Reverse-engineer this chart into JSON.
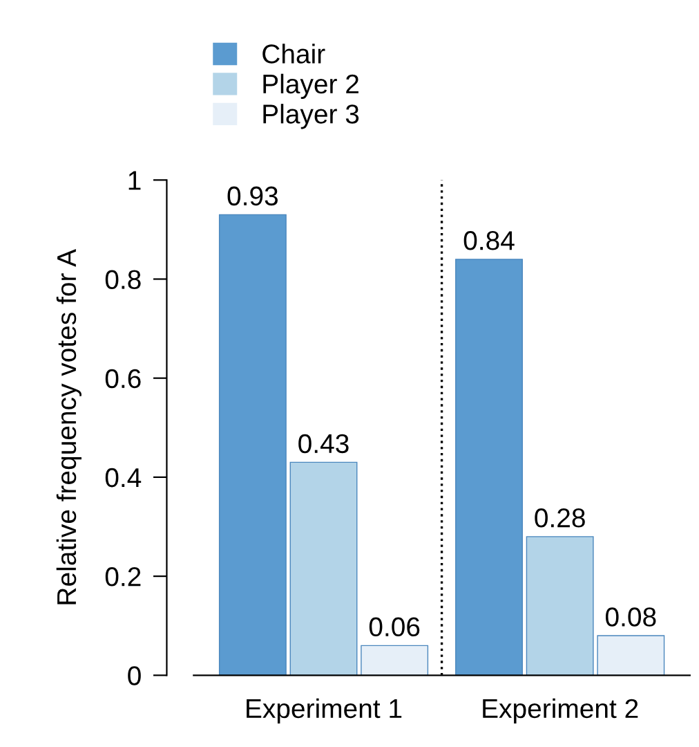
{
  "chart_data": {
    "type": "bar",
    "ylabel": "Relative frequency votes for A",
    "categories": [
      "Experiment 1",
      "Experiment 2"
    ],
    "series": [
      {
        "name": "Chair",
        "color": "#5b9bd0",
        "values": [
          0.93,
          0.84
        ]
      },
      {
        "name": "Player 2",
        "color": "#b3d4e8",
        "values": [
          0.43,
          0.28
        ]
      },
      {
        "name": "Player 3",
        "color": "#e6eff8",
        "values": [
          0.06,
          0.08
        ]
      }
    ],
    "ylim": [
      0,
      1
    ],
    "yticks": [
      0,
      0.2,
      0.4,
      0.6,
      0.8,
      1
    ],
    "data_labels": true,
    "legend": "top left",
    "grid": false
  }
}
